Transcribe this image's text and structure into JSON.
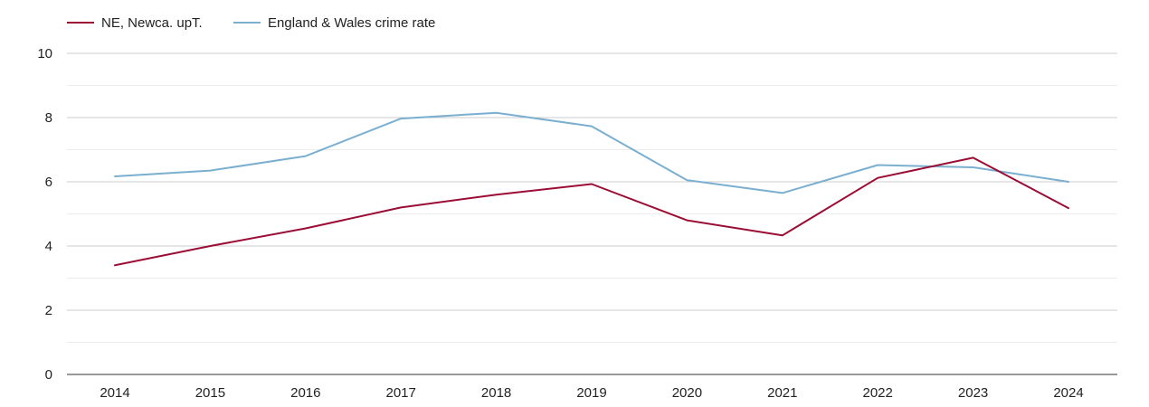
{
  "chart_data": {
    "type": "line",
    "title": "",
    "xlabel": "",
    "ylabel": "",
    "categories": [
      "2014",
      "2015",
      "2016",
      "2017",
      "2018",
      "2019",
      "2020",
      "2021",
      "2022",
      "2023",
      "2024"
    ],
    "y_ticks": [
      0,
      2,
      4,
      6,
      8,
      10
    ],
    "ylim": [
      0,
      10
    ],
    "grid": true,
    "legend_position": "top-left",
    "series": [
      {
        "name": "NE, Newca. upT.",
        "color": "#9b0d34",
        "values": [
          3.4,
          4.0,
          4.55,
          5.2,
          5.6,
          5.93,
          4.8,
          4.33,
          6.12,
          6.75,
          5.18
        ]
      },
      {
        "name": "England & Wales crime rate",
        "color": "#7aafd0",
        "values": [
          6.17,
          6.35,
          6.8,
          7.97,
          8.15,
          7.73,
          6.05,
          5.65,
          6.52,
          6.45,
          6.0
        ]
      }
    ]
  }
}
